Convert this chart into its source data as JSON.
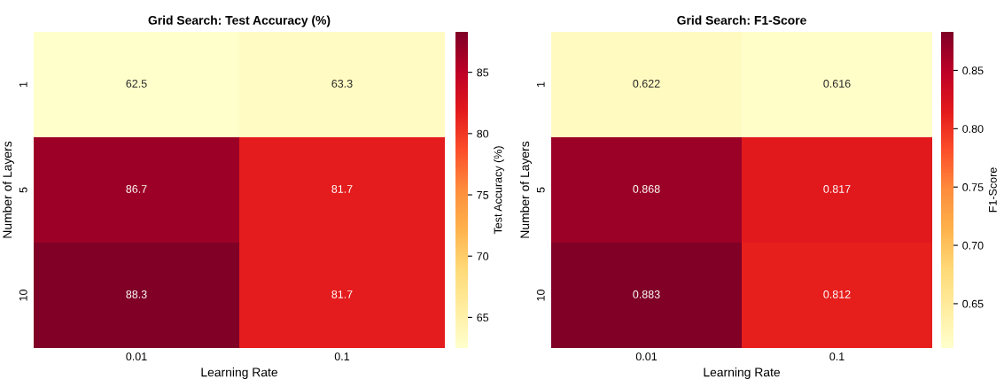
{
  "chart_data": [
    {
      "type": "heatmap",
      "title": "Grid Search: Test Accuracy (%)",
      "xlabel": "Learning Rate",
      "ylabel": "Number of Layers",
      "clabel": "Test Accuracy (%)",
      "categories": [
        "0.01",
        "0.1"
      ],
      "y_categories": [
        "1",
        "5",
        "10"
      ],
      "cells": [
        [
          62.5,
          63.3
        ],
        [
          86.7,
          81.7
        ],
        [
          88.3,
          81.7
        ]
      ],
      "clim": [
        62.5,
        88.3
      ],
      "cticks": [
        65,
        70,
        75,
        80,
        85
      ],
      "data_labels": true
    },
    {
      "type": "heatmap",
      "title": "Grid Search: F1-Score",
      "xlabel": "Learning Rate",
      "ylabel": "Number of Layers",
      "clabel": "F1-Score",
      "categories": [
        "0.01",
        "0.1"
      ],
      "y_categories": [
        "1",
        "5",
        "10"
      ],
      "cells": [
        [
          0.622,
          0.616
        ],
        [
          0.868,
          0.817
        ],
        [
          0.883,
          0.812
        ]
      ],
      "clim": [
        0.612,
        0.883
      ],
      "cticks": [
        0.65,
        {
          "value": 0.7,
          "label": "0.70"
        },
        0.75,
        {
          "value": 0.8,
          "label": "0.80"
        },
        0.85
      ],
      "data_labels": true
    }
  ]
}
